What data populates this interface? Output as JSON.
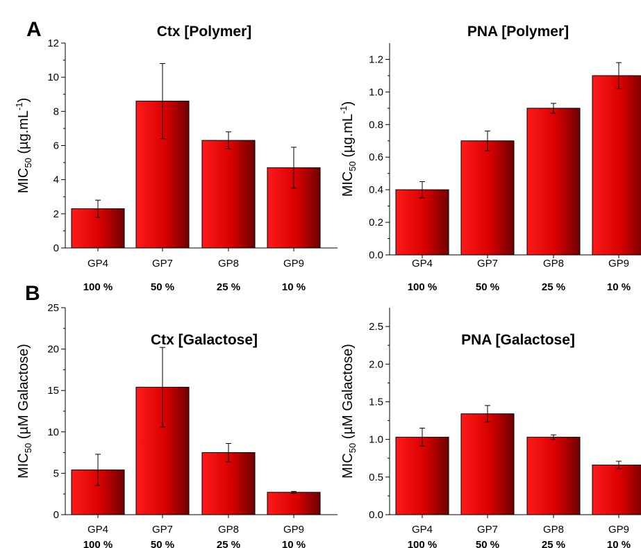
{
  "panel_letters": {
    "a": "A",
    "b": "B"
  },
  "chart_data": [
    {
      "type": "bar",
      "panel": "A-left",
      "title": "Ctx [Polymer]",
      "ylabel": {
        "prefix": "MIC",
        "sub": "50",
        "middle": " (µg.mL",
        "sup": "-1",
        "suffix": ")"
      },
      "categories": [
        "GP4",
        "GP7",
        "GP8",
        "GP9"
      ],
      "percent_labels": [
        "100 %",
        "50 %",
        "25 %",
        "10 %"
      ],
      "values": [
        2.3,
        8.6,
        6.3,
        4.7
      ],
      "errors": [
        0.5,
        2.2,
        0.5,
        1.2
      ],
      "ylim": [
        0,
        12
      ],
      "yticks": [
        0,
        2,
        4,
        6,
        8,
        10,
        12
      ],
      "ytick_labels": [
        "0",
        "2",
        "4",
        "6",
        "8",
        "10",
        "12"
      ],
      "bar_color": "#e00000",
      "grid": false
    },
    {
      "type": "bar",
      "panel": "A-right",
      "title": "PNA [Polymer]",
      "ylabel": {
        "prefix": "MIC",
        "sub": "50",
        "middle": " (µg.mL",
        "sup": "-1",
        "suffix": ")"
      },
      "categories": [
        "GP4",
        "GP7",
        "GP8",
        "GP9"
      ],
      "percent_labels": [
        "100 %",
        "50 %",
        "25 %",
        "10 %"
      ],
      "values": [
        0.4,
        0.7,
        0.9,
        1.1
      ],
      "errors": [
        0.05,
        0.06,
        0.03,
        0.08
      ],
      "ylim": [
        0,
        1.3
      ],
      "yticks": [
        0,
        0.2,
        0.4,
        0.6,
        0.8,
        1.0,
        1.2
      ],
      "ytick_labels": [
        "0.0",
        "0.2",
        "0.4",
        "0.6",
        "0.8",
        "1.0",
        "1.2"
      ],
      "bar_color": "#e00000",
      "grid": false
    },
    {
      "type": "bar",
      "panel": "B-left",
      "title": "Ctx [Galactose]",
      "ylabel": {
        "prefix": "MIC",
        "sub": "50",
        "middle": " (µM Galactose)",
        "sup": "",
        "suffix": ""
      },
      "categories": [
        "GP4",
        "GP7",
        "GP8",
        "GP9"
      ],
      "percent_labels": [
        "100 %",
        "50 %",
        "25 %",
        "10 %"
      ],
      "values": [
        5.4,
        15.4,
        7.5,
        2.7
      ],
      "errors": [
        1.9,
        4.8,
        1.1,
        0.1
      ],
      "ylim": [
        0,
        25
      ],
      "yticks": [
        0,
        5,
        10,
        15,
        20,
        25
      ],
      "ytick_labels": [
        "0",
        "5",
        "10",
        "15",
        "20",
        "25"
      ],
      "bar_color": "#e00000",
      "grid": false
    },
    {
      "type": "bar",
      "panel": "B-right",
      "title": "PNA [Galactose]",
      "ylabel": {
        "prefix": "MIC",
        "sub": "50",
        "middle": " (µM Galactose)",
        "sup": "",
        "suffix": ""
      },
      "categories": [
        "GP4",
        "GP7",
        "GP8",
        "GP9"
      ],
      "percent_labels": [
        "100 %",
        "50 %",
        "25 %",
        "10 %"
      ],
      "values": [
        1.03,
        1.34,
        1.03,
        0.66
      ],
      "errors": [
        0.12,
        0.11,
        0.03,
        0.05
      ],
      "ylim": [
        0,
        2.75
      ],
      "yticks": [
        0,
        0.5,
        1.0,
        1.5,
        2.0,
        2.5
      ],
      "ytick_labels": [
        "0.0",
        "0.5",
        "1.0",
        "1.5",
        "2.0",
        "2.5"
      ],
      "bar_color": "#e00000",
      "grid": false
    }
  ]
}
